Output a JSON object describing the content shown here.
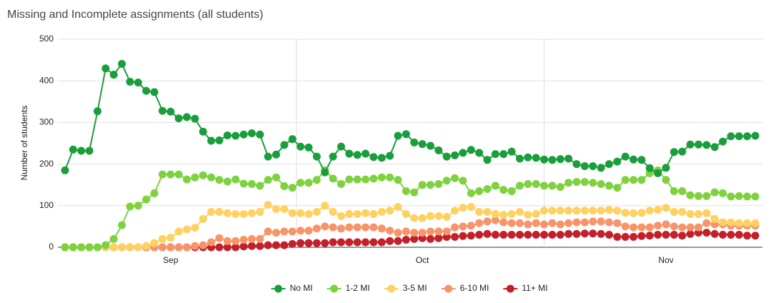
{
  "chart_data": {
    "type": "line",
    "title": "Missing and Incomplete assignments (all students)",
    "y_label": "Number of students",
    "categories": [
      null,
      null,
      null,
      null,
      null,
      null,
      null,
      null,
      null,
      null,
      null,
      null,
      null,
      "Sep",
      null,
      null,
      null,
      null,
      null,
      null,
      null,
      null,
      null,
      null,
      null,
      null,
      null,
      null,
      null,
      null,
      null,
      null,
      null,
      null,
      null,
      null,
      null,
      null,
      null,
      null,
      null,
      null,
      null,
      null,
      "Oct",
      null,
      null,
      null,
      null,
      null,
      null,
      null,
      null,
      null,
      null,
      null,
      null,
      null,
      null,
      null,
      null,
      null,
      null,
      null,
      null,
      null,
      null,
      null,
      null,
      null,
      null,
      null,
      null,
      null,
      "Nov",
      null,
      null,
      null,
      null,
      null,
      null,
      null,
      null,
      null,
      null,
      null
    ],
    "ylim": [
      0,
      500
    ],
    "yticks": [
      0,
      100,
      200,
      300,
      400,
      500
    ],
    "grid": true,
    "legend": "bottom",
    "series": [
      {
        "name": "No MI",
        "color": "#1a9e3c",
        "values": [
          185,
          235,
          232,
          232,
          327,
          430,
          415,
          441,
          398,
          396,
          376,
          373,
          328,
          326,
          310,
          313,
          309,
          278,
          256,
          257,
          269,
          268,
          271,
          274,
          271,
          218,
          223,
          246,
          260,
          242,
          240,
          218,
          180,
          218,
          242,
          225,
          222,
          225,
          217,
          215,
          220,
          268,
          272,
          252,
          248,
          244,
          233,
          218,
          221,
          227,
          234,
          227,
          210,
          224,
          224,
          230,
          213,
          216,
          215,
          211,
          210,
          212,
          213,
          200,
          195,
          195,
          191,
          200,
          206,
          218,
          211,
          210,
          190,
          178,
          191,
          229,
          230,
          247,
          247,
          246,
          241,
          254,
          267,
          267,
          267,
          268
        ]
      },
      {
        "name": "1-2 MI",
        "color": "#7ed23e",
        "values": [
          0,
          0,
          0,
          0,
          0,
          5,
          20,
          53,
          98,
          100,
          115,
          130,
          175,
          175,
          175,
          163,
          168,
          173,
          168,
          162,
          158,
          163,
          153,
          152,
          148,
          162,
          168,
          147,
          143,
          155,
          155,
          162,
          185,
          165,
          152,
          163,
          163,
          163,
          165,
          168,
          168,
          162,
          135,
          132,
          150,
          150,
          152,
          160,
          166,
          160,
          130,
          135,
          140,
          148,
          138,
          135,
          148,
          152,
          152,
          148,
          148,
          145,
          155,
          157,
          157,
          155,
          152,
          148,
          143,
          162,
          162,
          162,
          178,
          185,
          162,
          135,
          135,
          125,
          123,
          123,
          132,
          130,
          122,
          123,
          122,
          122
        ]
      },
      {
        "name": "3-5 MI",
        "color": "#ffd160",
        "values": [
          0,
          0,
          0,
          0,
          0,
          0,
          0,
          0,
          0,
          0,
          3,
          10,
          20,
          23,
          38,
          43,
          47,
          68,
          85,
          85,
          82,
          80,
          80,
          82,
          85,
          102,
          92,
          92,
          82,
          82,
          80,
          85,
          100,
          85,
          75,
          80,
          80,
          82,
          80,
          85,
          88,
          97,
          80,
          70,
          70,
          75,
          75,
          73,
          88,
          95,
          97,
          85,
          85,
          80,
          78,
          80,
          85,
          78,
          80,
          88,
          88,
          88,
          88,
          88,
          88,
          88,
          88,
          90,
          88,
          83,
          82,
          83,
          88,
          90,
          95,
          85,
          85,
          80,
          80,
          82,
          68,
          60,
          60,
          58,
          58,
          58
        ]
      },
      {
        "name": "6-10 MI",
        "color": "#f8946a",
        "values": [
          0,
          0,
          0,
          0,
          0,
          0,
          0,
          0,
          0,
          0,
          0,
          0,
          0,
          0,
          0,
          0,
          3,
          5,
          12,
          22,
          15,
          15,
          18,
          20,
          20,
          38,
          35,
          38,
          38,
          40,
          40,
          45,
          50,
          48,
          45,
          48,
          48,
          48,
          48,
          45,
          40,
          35,
          38,
          35,
          35,
          38,
          38,
          38,
          48,
          50,
          52,
          58,
          62,
          65,
          60,
          58,
          58,
          55,
          58,
          55,
          58,
          55,
          58,
          60,
          60,
          62,
          62,
          60,
          58,
          50,
          48,
          48,
          48,
          52,
          55,
          50,
          48,
          48,
          48,
          58,
          55,
          55,
          52,
          52,
          52,
          52
        ]
      },
      {
        "name": "11+ MI",
        "color": "#c4202b",
        "values": [
          0,
          0,
          0,
          0,
          0,
          0,
          0,
          0,
          0,
          0,
          0,
          0,
          0,
          0,
          0,
          0,
          0,
          0,
          0,
          0,
          0,
          0,
          2,
          3,
          3,
          5,
          5,
          5,
          8,
          10,
          10,
          10,
          10,
          12,
          12,
          12,
          12,
          12,
          12,
          12,
          15,
          15,
          18,
          20,
          22,
          20,
          22,
          25,
          25,
          27,
          28,
          30,
          32,
          30,
          30,
          30,
          30,
          30,
          30,
          30,
          30,
          30,
          32,
          32,
          33,
          33,
          32,
          30,
          25,
          25,
          25,
          27,
          28,
          30,
          30,
          30,
          28,
          32,
          35,
          35,
          32,
          30,
          30,
          30,
          28,
          28
        ]
      }
    ]
  }
}
